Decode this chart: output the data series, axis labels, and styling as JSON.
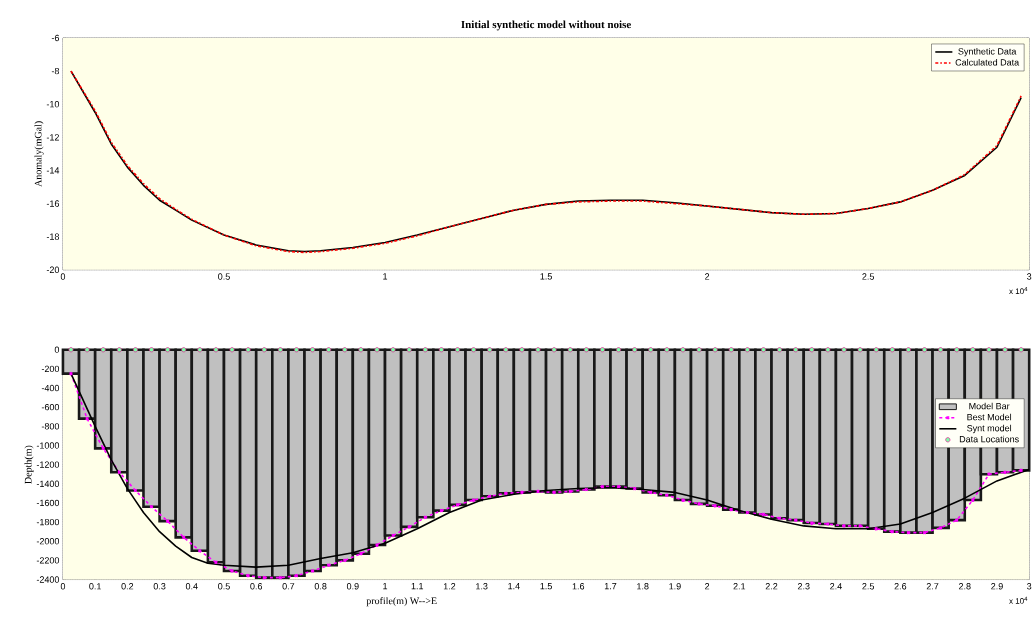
{
  "chart_data": [
    {
      "type": "line",
      "title": "Initial synthetic model without noise",
      "ylabel": "Anomaly(mGal)",
      "xlim": [
        0,
        3
      ],
      "ylim": [
        -20,
        -6
      ],
      "xticks": [
        0,
        0.5,
        1,
        1.5,
        2,
        2.5,
        3
      ],
      "yticks": [
        -20,
        -18,
        -16,
        -14,
        -12,
        -10,
        -8,
        -6
      ],
      "grid": true,
      "legend": "top right",
      "annotations": [
        "x 10$^{4}$"
      ],
      "series": [
        {
          "name": "Synthetic Data",
          "color": "#000000",
          "line_style": "solid",
          "x": [
            0.025,
            0.1,
            0.15,
            0.2,
            0.25,
            0.3,
            0.35,
            0.4,
            0.5,
            0.6,
            0.7,
            0.75,
            0.8,
            0.9,
            1,
            1.1,
            1.2,
            1.3,
            1.4,
            1.5,
            1.6,
            1.7,
            1.8,
            1.9,
            2,
            2.1,
            2.2,
            2.3,
            2.4,
            2.5,
            2.6,
            2.7,
            2.8,
            2.9,
            2.975
          ],
          "values": [
            -8,
            -10.5,
            -12.4,
            -13.8,
            -14.9,
            -15.8,
            -16.4,
            -17,
            -17.9,
            -18.5,
            -18.85,
            -18.9,
            -18.85,
            -18.65,
            -18.35,
            -17.9,
            -17.4,
            -16.9,
            -16.4,
            -16.05,
            -15.85,
            -15.8,
            -15.8,
            -15.95,
            -16.15,
            -16.35,
            -16.55,
            -16.65,
            -16.6,
            -16.3,
            -15.9,
            -15.2,
            -14.3,
            -12.6,
            -9.6
          ]
        },
        {
          "name": "Calculated Data",
          "color": "#ff0000",
          "line_style": "dashdot",
          "x": [
            0.025,
            0.1,
            0.15,
            0.2,
            0.25,
            0.3,
            0.35,
            0.4,
            0.5,
            0.6,
            0.7,
            0.75,
            0.8,
            0.9,
            1,
            1.1,
            1.2,
            1.3,
            1.4,
            1.5,
            1.6,
            1.7,
            1.8,
            1.9,
            2,
            2.1,
            2.2,
            2.3,
            2.4,
            2.5,
            2.6,
            2.7,
            2.8,
            2.9,
            2.975
          ],
          "values": [
            -8,
            -10.4,
            -12.3,
            -13.7,
            -14.8,
            -15.7,
            -16.35,
            -16.95,
            -17.9,
            -18.55,
            -18.9,
            -18.95,
            -18.9,
            -18.7,
            -18.4,
            -17.95,
            -17.4,
            -16.9,
            -16.4,
            -16.05,
            -15.9,
            -15.85,
            -15.85,
            -16,
            -16.15,
            -16.35,
            -16.55,
            -16.65,
            -16.6,
            -16.3,
            -15.9,
            -15.2,
            -14.25,
            -12.5,
            -9.5
          ]
        }
      ]
    },
    {
      "type": "bar",
      "xlabel": "profile(m) W-->E",
      "ylabel": "Depth(m)",
      "xlim": [
        0,
        3
      ],
      "ylim": [
        -2400,
        0
      ],
      "xticks": [
        0,
        0.1,
        0.2,
        0.3,
        0.4,
        0.5,
        0.6,
        0.7,
        0.8,
        0.9,
        1,
        1.1,
        1.2,
        1.3,
        1.4,
        1.5,
        1.6,
        1.7,
        1.8,
        1.9,
        2,
        2.1,
        2.2,
        2.3,
        2.4,
        2.5,
        2.6,
        2.7,
        2.8,
        2.9,
        3
      ],
      "yticks": [
        -2400,
        -2200,
        -2000,
        -1800,
        -1600,
        -1400,
        -1200,
        -1000,
        -800,
        -600,
        -400,
        -200,
        0
      ],
      "grid": true,
      "legend": "right",
      "annotations": [
        "x 10$^{4}$"
      ],
      "series": [
        {
          "name": "Model Bar",
          "color": "#c0c0c0",
          "x": [
            0.025,
            0.075,
            0.125,
            0.175,
            0.225,
            0.275,
            0.325,
            0.375,
            0.425,
            0.475,
            0.525,
            0.575,
            0.625,
            0.675,
            0.725,
            0.775,
            0.825,
            0.875,
            0.925,
            0.975,
            1.025,
            1.075,
            1.125,
            1.175,
            1.225,
            1.275,
            1.325,
            1.375,
            1.425,
            1.475,
            1.525,
            1.575,
            1.625,
            1.675,
            1.725,
            1.775,
            1.825,
            1.875,
            1.925,
            1.975,
            2.025,
            2.075,
            2.125,
            2.175,
            2.225,
            2.275,
            2.325,
            2.375,
            2.425,
            2.475,
            2.525,
            2.575,
            2.625,
            2.675,
            2.725,
            2.775,
            2.825,
            2.875,
            2.925,
            2.975
          ],
          "values": [
            -250,
            -720,
            -1030,
            -1280,
            -1470,
            -1640,
            -1790,
            -1960,
            -2100,
            -2220,
            -2310,
            -2360,
            -2380,
            -2380,
            -2360,
            -2310,
            -2250,
            -2200,
            -2130,
            -2040,
            -1940,
            -1850,
            -1750,
            -1680,
            -1620,
            -1570,
            -1530,
            -1500,
            -1490,
            -1480,
            -1490,
            -1480,
            -1460,
            -1430,
            -1430,
            -1450,
            -1490,
            -1520,
            -1570,
            -1610,
            -1630,
            -1670,
            -1700,
            -1720,
            -1760,
            -1780,
            -1810,
            -1820,
            -1840,
            -1840,
            -1870,
            -1900,
            -1910,
            -1910,
            -1860,
            -1780,
            -1570,
            -1300,
            -1280,
            -1260
          ]
        },
        {
          "name": "Best Model",
          "type": "line",
          "color": "#ff00ff",
          "line_style": "dashed",
          "marker": "cross",
          "x": [
            0.025,
            0.075,
            0.125,
            0.175,
            0.225,
            0.275,
            0.325,
            0.375,
            0.425,
            0.475,
            0.525,
            0.575,
            0.625,
            0.675,
            0.725,
            0.775,
            0.825,
            0.875,
            0.925,
            0.975,
            1.025,
            1.075,
            1.125,
            1.175,
            1.225,
            1.275,
            1.325,
            1.375,
            1.425,
            1.475,
            1.525,
            1.575,
            1.625,
            1.675,
            1.725,
            1.775,
            1.825,
            1.875,
            1.925,
            1.975,
            2.025,
            2.075,
            2.125,
            2.175,
            2.225,
            2.275,
            2.325,
            2.375,
            2.425,
            2.475,
            2.525,
            2.575,
            2.625,
            2.675,
            2.725,
            2.775,
            2.825,
            2.875,
            2.925,
            2.975
          ],
          "values": [
            -250,
            -720,
            -1030,
            -1280,
            -1470,
            -1640,
            -1790,
            -1960,
            -2100,
            -2220,
            -2310,
            -2360,
            -2380,
            -2380,
            -2360,
            -2310,
            -2250,
            -2200,
            -2130,
            -2040,
            -1940,
            -1850,
            -1750,
            -1680,
            -1620,
            -1570,
            -1530,
            -1500,
            -1490,
            -1480,
            -1490,
            -1480,
            -1460,
            -1430,
            -1430,
            -1450,
            -1490,
            -1520,
            -1570,
            -1610,
            -1630,
            -1670,
            -1700,
            -1720,
            -1760,
            -1780,
            -1810,
            -1820,
            -1840,
            -1840,
            -1870,
            -1900,
            -1910,
            -1910,
            -1860,
            -1780,
            -1570,
            -1300,
            -1280,
            -1260
          ]
        },
        {
          "name": "Synt model",
          "type": "line",
          "color": "#000000",
          "line_style": "solid",
          "x": [
            0.025,
            0.1,
            0.15,
            0.2,
            0.25,
            0.3,
            0.35,
            0.4,
            0.45,
            0.5,
            0.6,
            0.7,
            0.8,
            0.9,
            1,
            1.1,
            1.2,
            1.3,
            1.4,
            1.5,
            1.6,
            1.7,
            1.8,
            1.9,
            2,
            2.1,
            2.2,
            2.3,
            2.4,
            2.5,
            2.6,
            2.7,
            2.8,
            2.9,
            3
          ],
          "values": [
            -250,
            -800,
            -1150,
            -1450,
            -1700,
            -1900,
            -2050,
            -2170,
            -2230,
            -2250,
            -2270,
            -2250,
            -2180,
            -2120,
            -2020,
            -1870,
            -1700,
            -1570,
            -1510,
            -1470,
            -1450,
            -1440,
            -1460,
            -1490,
            -1570,
            -1680,
            -1770,
            -1840,
            -1870,
            -1870,
            -1820,
            -1700,
            -1550,
            -1370,
            -1250
          ]
        },
        {
          "name": "Data Locations",
          "type": "scatter",
          "color": "#7fffaa",
          "marker": "circle",
          "x": [
            0.025,
            0.075,
            0.125,
            0.175,
            0.225,
            0.275,
            0.325,
            0.375,
            0.425,
            0.475,
            0.525,
            0.575,
            0.625,
            0.675,
            0.725,
            0.775,
            0.825,
            0.875,
            0.925,
            0.975,
            1.025,
            1.075,
            1.125,
            1.175,
            1.225,
            1.275,
            1.325,
            1.375,
            1.425,
            1.475,
            1.525,
            1.575,
            1.625,
            1.675,
            1.725,
            1.775,
            1.825,
            1.875,
            1.925,
            1.975,
            2.025,
            2.075,
            2.125,
            2.175,
            2.225,
            2.275,
            2.325,
            2.375,
            2.425,
            2.475,
            2.525,
            2.575,
            2.625,
            2.675,
            2.725,
            2.775,
            2.825,
            2.875,
            2.925,
            2.975
          ],
          "values": [
            0,
            0,
            0,
            0,
            0,
            0,
            0,
            0,
            0,
            0,
            0,
            0,
            0,
            0,
            0,
            0,
            0,
            0,
            0,
            0,
            0,
            0,
            0,
            0,
            0,
            0,
            0,
            0,
            0,
            0,
            0,
            0,
            0,
            0,
            0,
            0,
            0,
            0,
            0,
            0,
            0,
            0,
            0,
            0,
            0,
            0,
            0,
            0,
            0,
            0,
            0,
            0,
            0,
            0,
            0,
            0,
            0,
            0,
            0,
            0
          ]
        }
      ]
    }
  ]
}
